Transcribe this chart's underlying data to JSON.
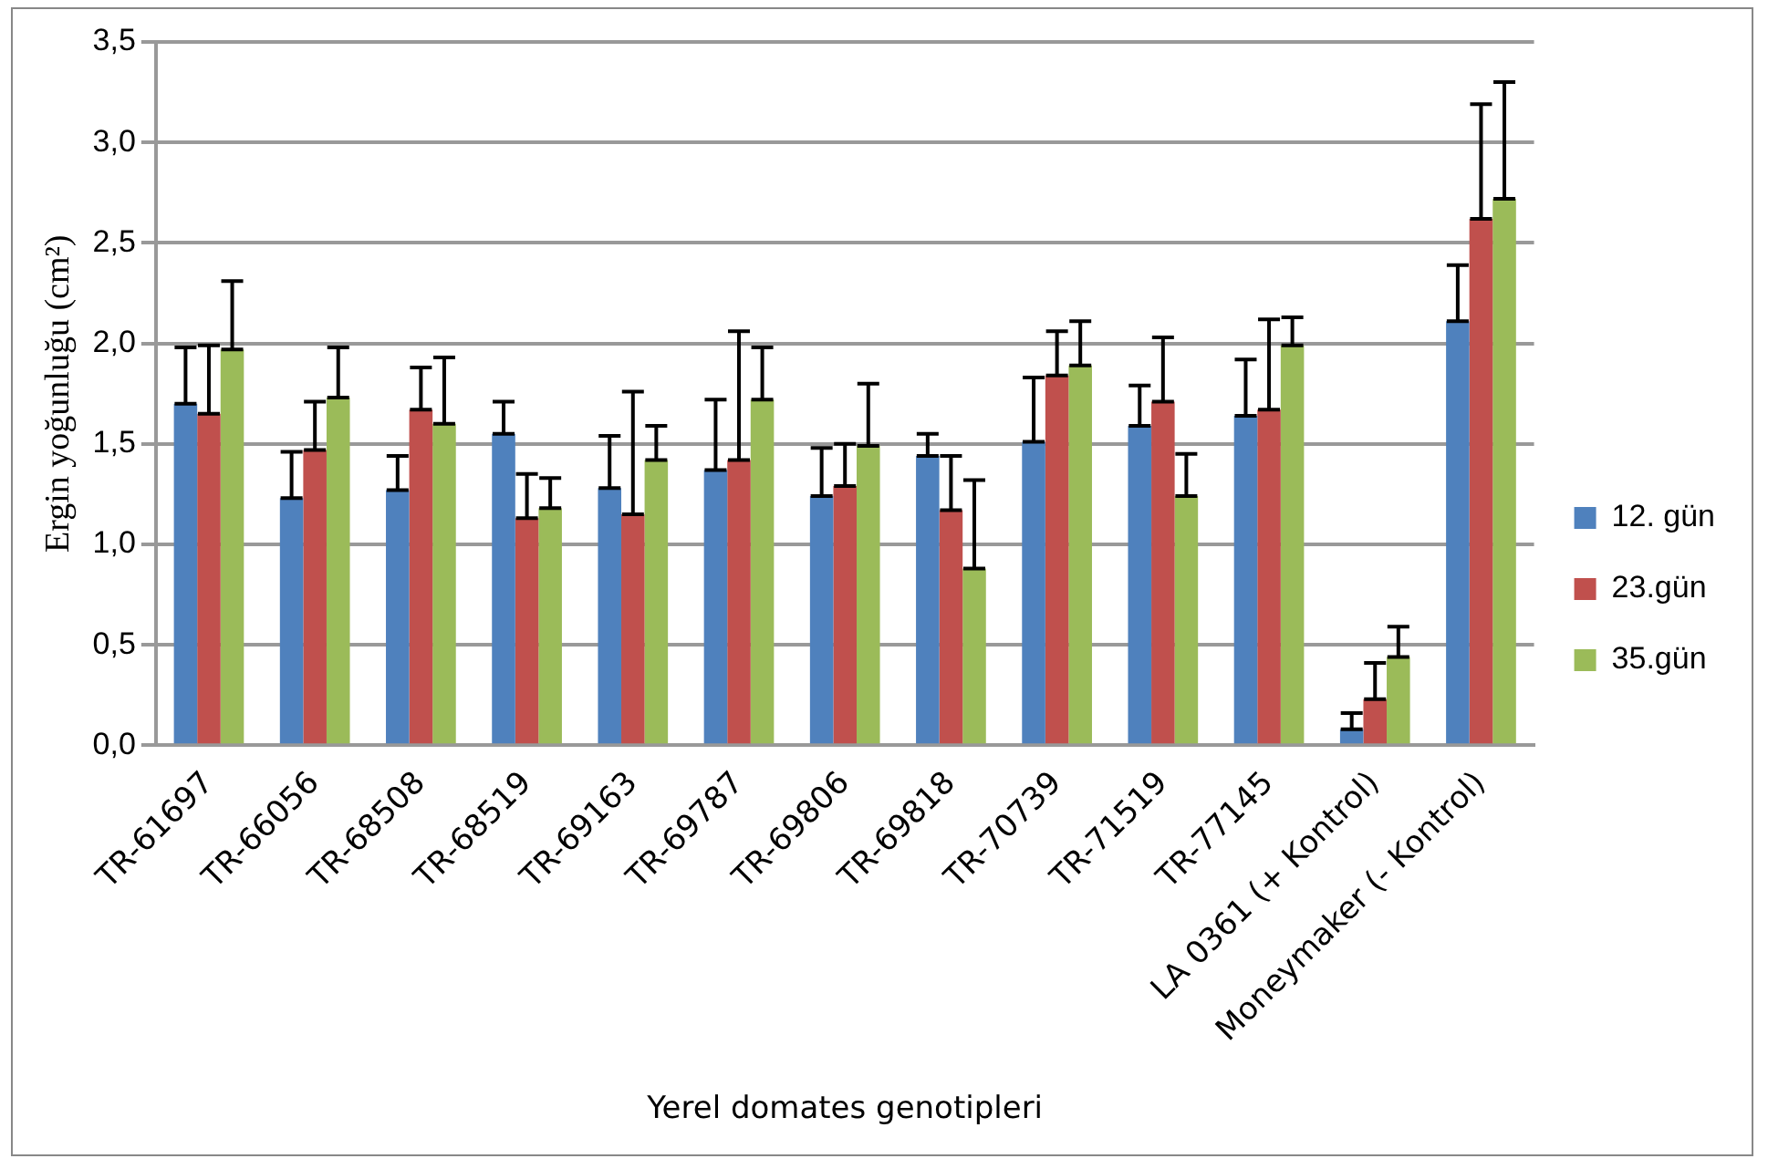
{
  "chart_data": {
    "type": "bar",
    "xlabel": "Yerel domates genotipleri",
    "ylabel": "Ergin yoğunluğu (cm²)",
    "categories": [
      "TR-61697",
      "TR-66056",
      "TR-68508",
      "TR-68519",
      "TR-69163",
      "TR-69787",
      "TR-69806",
      "TR-69818",
      "TR-70739",
      "TR-71519",
      "TR-77145",
      "LA 0361 (+ Kontrol)",
      "Moneymaker (- Kontrol)"
    ],
    "series": [
      {
        "name": "12. gün",
        "color": "#4f81bd",
        "values": [
          1.7,
          1.23,
          1.27,
          1.55,
          1.28,
          1.37,
          1.24,
          1.44,
          1.51,
          1.59,
          1.64,
          0.08,
          2.11
        ],
        "errors": [
          [
            1.7,
            1.98
          ],
          [
            1.23,
            1.46
          ],
          [
            1.27,
            1.44
          ],
          [
            1.55,
            1.71
          ],
          [
            1.28,
            1.54
          ],
          [
            1.37,
            1.72
          ],
          [
            1.24,
            1.48
          ],
          [
            1.44,
            1.55
          ],
          [
            1.51,
            1.83
          ],
          [
            1.59,
            1.79
          ],
          [
            1.64,
            1.92
          ],
          [
            0.08,
            0.16
          ],
          [
            2.11,
            2.39
          ]
        ]
      },
      {
        "name": "23.gün",
        "color": "#c0504d",
        "values": [
          1.65,
          1.47,
          1.67,
          1.13,
          1.15,
          1.42,
          1.29,
          1.17,
          1.84,
          1.71,
          1.67,
          0.23,
          2.62
        ],
        "errors": [
          [
            1.65,
            1.99
          ],
          [
            1.47,
            1.71
          ],
          [
            1.67,
            1.88
          ],
          [
            1.13,
            1.35
          ],
          [
            1.15,
            1.76
          ],
          [
            1.42,
            2.06
          ],
          [
            1.29,
            1.5
          ],
          [
            1.17,
            1.44
          ],
          [
            1.84,
            2.06
          ],
          [
            1.71,
            2.03
          ],
          [
            1.67,
            2.12
          ],
          [
            0.23,
            0.41
          ],
          [
            2.62,
            3.19
          ]
        ]
      },
      {
        "name": "35.gün",
        "color": "#9bbb59",
        "values": [
          1.97,
          1.73,
          1.6,
          1.18,
          1.42,
          1.72,
          1.49,
          0.88,
          1.89,
          1.24,
          1.99,
          0.44,
          2.72
        ],
        "errors": [
          [
            1.97,
            2.31
          ],
          [
            1.73,
            1.98
          ],
          [
            1.6,
            1.93
          ],
          [
            1.18,
            1.33
          ],
          [
            1.42,
            1.59
          ],
          [
            1.72,
            1.98
          ],
          [
            1.49,
            1.8
          ],
          [
            0.88,
            1.32
          ],
          [
            1.89,
            2.11
          ],
          [
            1.24,
            1.45
          ],
          [
            1.99,
            2.13
          ],
          [
            0.44,
            0.59
          ],
          [
            2.72,
            3.3
          ]
        ]
      }
    ],
    "ylim": [
      0,
      3.5
    ],
    "yticks": [
      {
        "value": 0,
        "label": "0,0"
      },
      {
        "value": 0.5,
        "label": "0,5"
      },
      {
        "value": 1,
        "label": "1,0"
      },
      {
        "value": 1.5,
        "label": "1,5"
      },
      {
        "value": 2,
        "label": "2,0"
      },
      {
        "value": 2.5,
        "label": "2,5"
      },
      {
        "value": 3,
        "label": "3,0"
      },
      {
        "value": 3.5,
        "label": "3,5"
      }
    ],
    "grid": "y",
    "legend": "right"
  }
}
